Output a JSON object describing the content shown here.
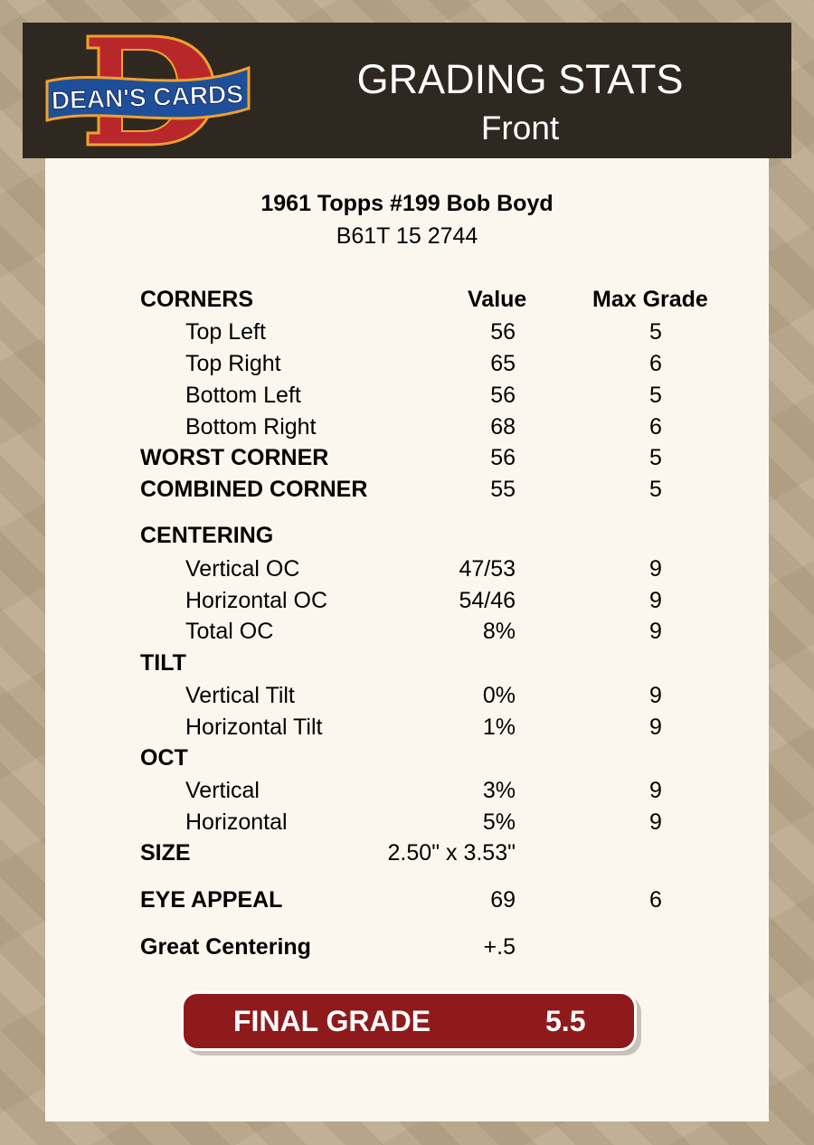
{
  "header": {
    "logo_text": "DEAN'S CARDS",
    "title": "GRADING STATS",
    "subtitle": "Front"
  },
  "card": {
    "name": "1961 Topps #199 Bob Boyd",
    "code": "B61T 15 2744"
  },
  "columns": {
    "value": "Value",
    "max_grade": "Max Grade"
  },
  "rows": [
    {
      "label": "CORNERS",
      "value": "",
      "max": "",
      "bold": true,
      "indent": false
    },
    {
      "label": "Top Left",
      "value": "56",
      "max": "5",
      "bold": false,
      "indent": true
    },
    {
      "label": "Top Right",
      "value": "65",
      "max": "6",
      "bold": false,
      "indent": true
    },
    {
      "label": "Bottom Left",
      "value": "56",
      "max": "5",
      "bold": false,
      "indent": true
    },
    {
      "label": "Bottom Right",
      "value": "68",
      "max": "6",
      "bold": false,
      "indent": true
    },
    {
      "label": "WORST CORNER",
      "value": "56",
      "max": "5",
      "bold": true,
      "indent": false
    },
    {
      "label": "COMBINED CORNER",
      "value": "55",
      "max": "5",
      "bold": true,
      "indent": false
    },
    {
      "label": "CENTERING",
      "value": "",
      "max": "",
      "bold": true,
      "indent": false
    },
    {
      "label": "Vertical OC",
      "value": "47/53",
      "max": "9",
      "bold": false,
      "indent": true
    },
    {
      "label": "Horizontal OC",
      "value": "54/46",
      "max": "9",
      "bold": false,
      "indent": true
    },
    {
      "label": "Total OC",
      "value": "8%",
      "max": "9",
      "bold": false,
      "indent": true
    },
    {
      "label": "TILT",
      "value": "",
      "max": "",
      "bold": true,
      "indent": false
    },
    {
      "label": "Vertical Tilt",
      "value": "0%",
      "max": "9",
      "bold": false,
      "indent": true
    },
    {
      "label": "Horizontal Tilt",
      "value": "1%",
      "max": "9",
      "bold": false,
      "indent": true
    },
    {
      "label": "OCT",
      "value": "",
      "max": "",
      "bold": true,
      "indent": false
    },
    {
      "label": "Vertical",
      "value": "3%",
      "max": "9",
      "bold": false,
      "indent": true
    },
    {
      "label": "Horizontal",
      "value": "5%",
      "max": "9",
      "bold": false,
      "indent": true
    },
    {
      "label": "SIZE",
      "value": "2.50\" x 3.53\"",
      "max": "",
      "bold": true,
      "indent": false
    },
    {
      "label": "EYE APPEAL",
      "value": "69",
      "max": "6",
      "bold": true,
      "indent": false
    },
    {
      "label": "Great Centering",
      "value": "+.5",
      "max": "",
      "bold": true,
      "indent": false
    }
  ],
  "final": {
    "label": "FINAL GRADE",
    "value": "5.5"
  },
  "colors": {
    "header_bg": "#2e2820",
    "panel_bg": "#fcf7ee",
    "final_bg": "#8f1a1c"
  }
}
